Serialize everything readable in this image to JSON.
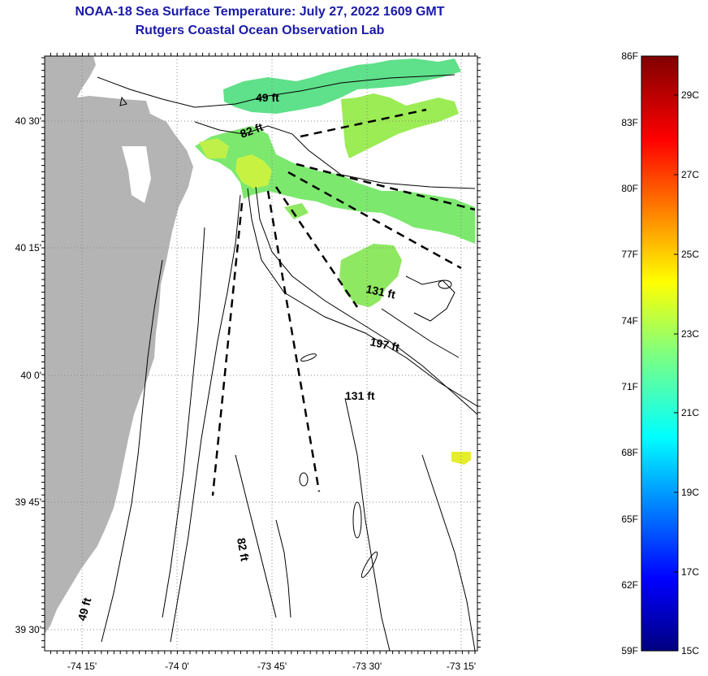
{
  "header": {
    "title": "NOAA-18 Sea Surface Temperature:  July 27, 2022 1609 GMT",
    "subtitle": "Rutgers Coastal Ocean Observation Lab"
  },
  "map": {
    "lat_labels": [
      "40 30'",
      "40 15'",
      "40 0'",
      "39 45'",
      "39 30'"
    ],
    "lon_labels": [
      "-74 15'",
      "-74 0'",
      "-73 45'",
      "-73 30'",
      "-73 15'"
    ],
    "depth_labels": [
      "49 ft",
      "82 ft",
      "131 ft",
      "197 ft",
      "131 ft",
      "82 ft",
      "49 ft"
    ],
    "colors": {
      "land": "#b4b4b4",
      "sst_patch": "#6fe07a",
      "sst_warm": "#c6f23e",
      "sst_hot": "#e8ef2a",
      "grid": "#888888"
    }
  },
  "colorbar": {
    "fahrenheit_labels": [
      "86F",
      "83F",
      "80F",
      "77F",
      "74F",
      "71F",
      "68F",
      "65F",
      "62F",
      "59F"
    ],
    "celsius_labels": [
      "29C",
      "27C",
      "25C",
      "23C",
      "21C",
      "19C",
      "17C",
      "15C"
    ]
  }
}
